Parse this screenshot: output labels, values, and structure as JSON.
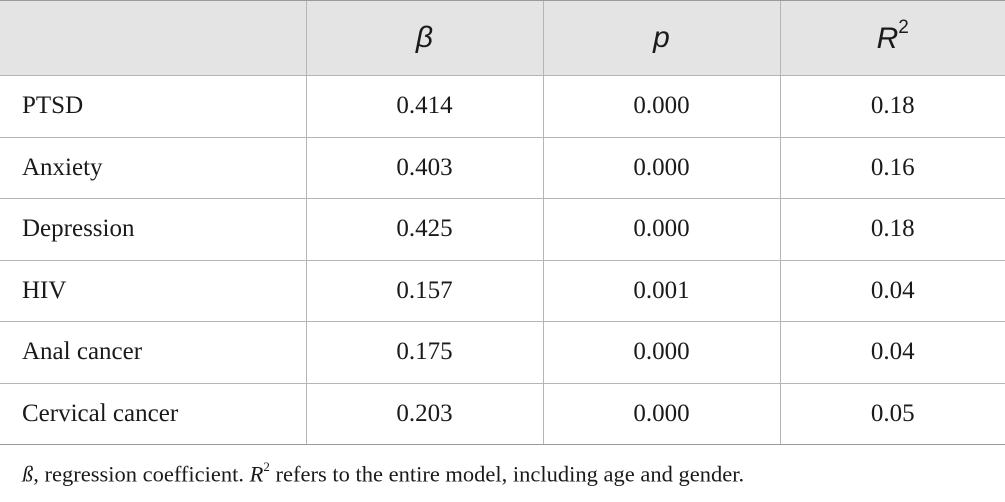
{
  "table": {
    "headers": {
      "col0": "",
      "col1": "β",
      "col2": "p",
      "col3_base": "R",
      "col3_sup": "2"
    },
    "rows": [
      {
        "label": "PTSD",
        "beta": "0.414",
        "p": "0.000",
        "r2": "0.18"
      },
      {
        "label": "Anxiety",
        "beta": "0.403",
        "p": "0.000",
        "r2": "0.16"
      },
      {
        "label": "Depression",
        "beta": "0.425",
        "p": "0.000",
        "r2": "0.18"
      },
      {
        "label": "HIV",
        "beta": "0.157",
        "p": "0.001",
        "r2": "0.04"
      },
      {
        "label": "Anal cancer",
        "beta": "0.175",
        "p": "0.000",
        "r2": "0.04"
      },
      {
        "label": "Cervical cancer",
        "beta": "0.203",
        "p": "0.000",
        "r2": "0.05"
      }
    ]
  },
  "footnote": {
    "symbol": "ß",
    "text1": ", regression coefficient. ",
    "r_base": "R",
    "r_sup": "2",
    "text2": " refers to the entire model, including age and gender."
  }
}
